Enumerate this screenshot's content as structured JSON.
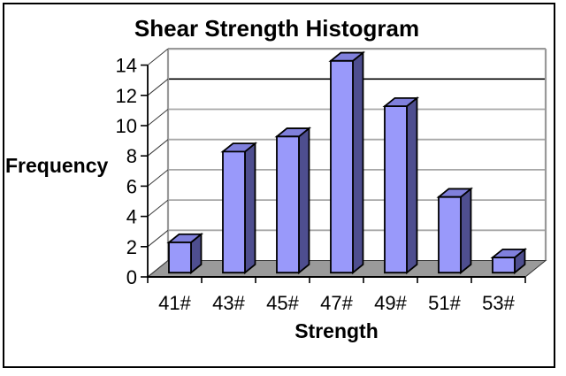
{
  "window": {
    "background": "#FFFFFF",
    "border_color": "#000000"
  },
  "chart_data": {
    "type": "bar",
    "style": "3d-column",
    "title": "Shear Strength Histogram",
    "xlabel": "Strength",
    "ylabel": "Frequency",
    "categories": [
      "41#",
      "43#",
      "45#",
      "47#",
      "49#",
      "51#",
      "53#"
    ],
    "values": [
      2,
      8,
      9,
      14,
      11,
      5,
      1
    ],
    "ylim": [
      0,
      14
    ],
    "ytick_step": 2,
    "yticks": [
      0,
      2,
      4,
      6,
      8,
      10,
      12,
      14
    ],
    "grid": true,
    "emphasized_gridline": 12,
    "legend_position": "none",
    "colors": {
      "bar_front": "#9999FA",
      "bar_top": "#8080DC",
      "bar_side": "#4E4E8F",
      "bar_outline": "#000000",
      "floor": "#9A9A9A",
      "floor_outline": "#333333",
      "wall_edge": "#999999",
      "gridline": "#A8A8A8",
      "gridline_emphasis": "#000000",
      "axis": "#000000",
      "text": "#000000"
    }
  }
}
